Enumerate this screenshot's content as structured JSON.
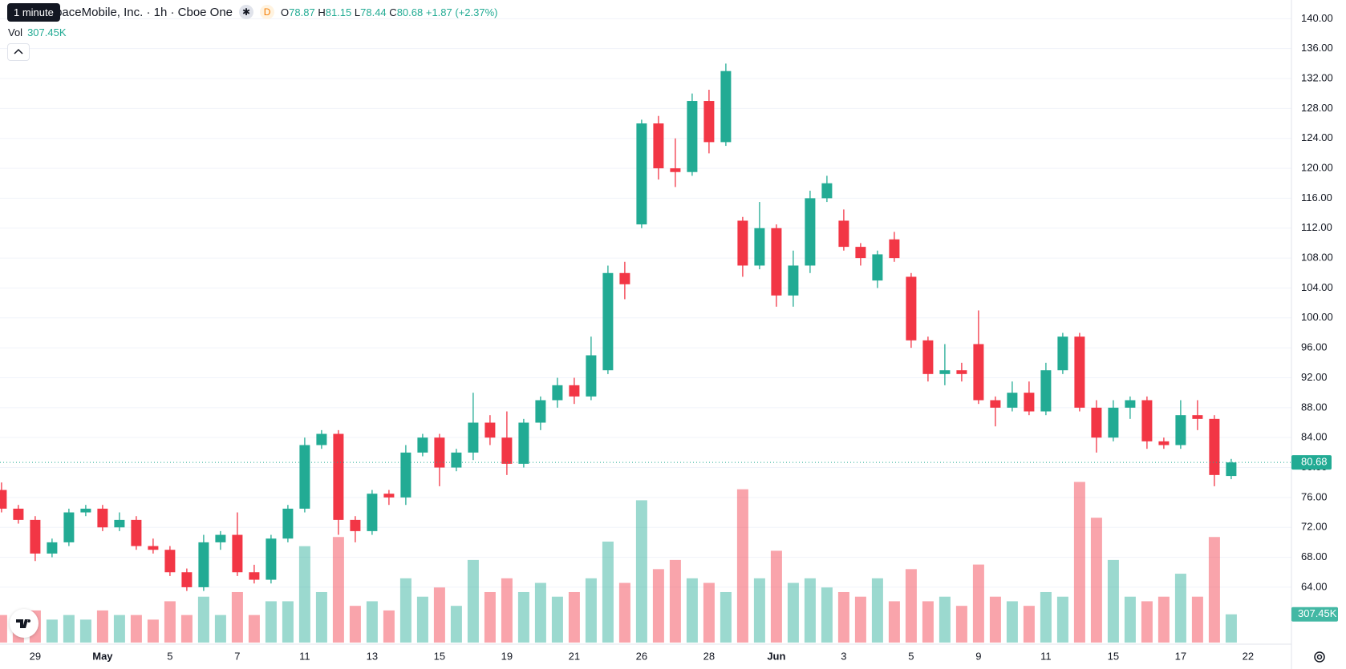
{
  "chart_data": {
    "type": "candlestick",
    "tooltip": "1 minute",
    "title": "AST SpaceMobile, Inc. · 1h · Cboe One",
    "badge": "D",
    "ohlc_keys": [
      "O",
      "H",
      "L",
      "C"
    ],
    "change": "+1.87 (+2.37%)",
    "volume_name": "Vol",
    "volume_label": "307.45K",
    "up_color": "#22ab94",
    "down_color": "#f23645",
    "categories": [
      null,
      null,
      "29",
      null,
      null,
      null,
      "May",
      null,
      null,
      null,
      "5",
      null,
      null,
      null,
      "7",
      null,
      null,
      null,
      "11",
      null,
      null,
      null,
      "13",
      null,
      null,
      null,
      "15",
      null,
      null,
      null,
      "19",
      null,
      null,
      null,
      "21",
      null,
      null,
      null,
      "26",
      null,
      null,
      null,
      "28",
      null,
      null,
      null,
      "Jun",
      null,
      null,
      null,
      "3",
      null,
      null,
      null,
      "5",
      null,
      null,
      null,
      "9",
      null,
      null,
      null,
      "11",
      null,
      null,
      null,
      "15",
      null,
      null,
      null,
      "17",
      null,
      null,
      null,
      "22"
    ],
    "open": [
      77,
      74.5,
      73,
      68.5,
      70,
      74,
      74.5,
      72,
      73,
      69.5,
      69,
      66,
      64,
      70,
      71,
      66,
      65,
      70.5,
      74.5,
      83,
      84.5,
      73,
      71.5,
      76.5,
      76,
      82,
      84,
      80,
      82,
      86,
      84,
      80.5,
      86,
      89,
      91,
      89.5,
      93,
      106,
      112.5,
      126,
      120,
      119.5,
      129,
      123.5,
      113,
      107,
      112,
      103,
      107,
      116,
      113,
      109.5,
      105,
      110.5,
      105.5,
      97,
      92.5,
      93,
      96.5,
      89,
      88,
      90,
      87.5,
      93,
      97.5,
      88,
      84,
      88,
      89,
      83.5,
      83,
      87,
      86.5,
      78.87,
      null
    ],
    "high": [
      78,
      75,
      73.5,
      70.5,
      74.5,
      75,
      75,
      74,
      73.5,
      70.5,
      69.5,
      66.5,
      71,
      71.5,
      74,
      67,
      71,
      75,
      84,
      85,
      85,
      73.5,
      77,
      77,
      83,
      84.5,
      84.5,
      82.5,
      90,
      87,
      87.5,
      86.5,
      89.5,
      92,
      92,
      97.5,
      107,
      107.5,
      126.5,
      127,
      124,
      130,
      130.5,
      134,
      113.5,
      115.5,
      112.5,
      109,
      117,
      119,
      114.5,
      110,
      109,
      111.5,
      106,
      97.5,
      96.5,
      94,
      101,
      89.5,
      91.5,
      91.5,
      94,
      98,
      98,
      89,
      89,
      89.5,
      89.5,
      84,
      89,
      89,
      87,
      81.15,
      null
    ],
    "low": [
      74,
      72.5,
      67.5,
      68,
      69.5,
      73.5,
      71.5,
      71.5,
      69,
      68.5,
      65.5,
      63.5,
      63.5,
      69,
      65.5,
      64.5,
      64.5,
      70,
      74,
      82.5,
      71,
      70,
      71,
      75,
      75,
      81.5,
      77.5,
      79.5,
      81,
      83,
      79,
      80,
      85,
      88,
      88.5,
      89,
      92.5,
      102.5,
      112,
      118.5,
      117.5,
      119,
      122,
      123,
      105.5,
      106.5,
      101.5,
      101.5,
      106,
      115.5,
      109,
      107,
      104,
      107.5,
      96,
      91.5,
      91,
      91.5,
      88.5,
      85.5,
      87.5,
      87,
      87,
      92.5,
      87.5,
      82,
      83.5,
      86.5,
      82.5,
      82.5,
      82.5,
      85,
      77.5,
      78.44,
      null
    ],
    "close": [
      74.5,
      73,
      68.5,
      70,
      74,
      74.5,
      72,
      73,
      69.5,
      69,
      66,
      64,
      70,
      71,
      66,
      65,
      70.5,
      74.5,
      83,
      84.5,
      73,
      71.5,
      76.5,
      76,
      82,
      84,
      80,
      82,
      86,
      84,
      80.5,
      86,
      89,
      91,
      89.5,
      95,
      106,
      104.5,
      126,
      120,
      119.5,
      129,
      123.5,
      133,
      107,
      112,
      103,
      107,
      116,
      118,
      109.5,
      108,
      108.5,
      108,
      97,
      92.5,
      93,
      92.5,
      89,
      88,
      90,
      87.5,
      93,
      97.5,
      88,
      84,
      88,
      89,
      83.5,
      83,
      87,
      86.5,
      79,
      80.68,
      null
    ],
    "volume": [
      300000,
      250000,
      350000,
      250000,
      300000,
      250000,
      350000,
      300000,
      300000,
      250000,
      450000,
      300000,
      500000,
      300000,
      550000,
      300000,
      450000,
      450000,
      1050000,
      550000,
      1150000,
      400000,
      450000,
      350000,
      700000,
      500000,
      600000,
      400000,
      900000,
      550000,
      700000,
      550000,
      650000,
      500000,
      550000,
      700000,
      1100000,
      650000,
      1550000,
      800000,
      900000,
      700000,
      650000,
      550000,
      1670000,
      700000,
      1000000,
      650000,
      700000,
      600000,
      550000,
      500000,
      700000,
      450000,
      800000,
      450000,
      500000,
      400000,
      850000,
      500000,
      450000,
      400000,
      550000,
      500000,
      1750000,
      1360000,
      900000,
      500000,
      450000,
      500000,
      750000,
      500000,
      1150000,
      307450,
      null
    ],
    "ylim": [
      56.6,
      142.5
    ],
    "yticks": [
      {
        "value": 64,
        "label": "64.00"
      },
      {
        "value": 68,
        "label": "68.00"
      },
      {
        "value": 72,
        "label": "72.00"
      },
      {
        "value": 76,
        "label": "76.00"
      },
      {
        "value": 80,
        "label": "80.00"
      },
      {
        "value": 84,
        "label": "84.00"
      },
      {
        "value": 88,
        "label": "88.00"
      },
      {
        "value": 92,
        "label": "92.00"
      },
      {
        "value": 96,
        "label": "96.00"
      },
      {
        "value": 100,
        "label": "100.00"
      },
      {
        "value": 104,
        "label": "104.00"
      },
      {
        "value": 108,
        "label": "108.00"
      },
      {
        "value": 112,
        "label": "112.00"
      },
      {
        "value": 116,
        "label": "116.00"
      },
      {
        "value": 120,
        "label": "120.00"
      },
      {
        "value": 124,
        "label": "124.00"
      },
      {
        "value": 128,
        "label": "128.00"
      },
      {
        "value": 132,
        "label": "132.00"
      },
      {
        "value": 136,
        "label": "136.00"
      },
      {
        "value": 140,
        "label": "140.00"
      }
    ],
    "volume_ylim": [
      0,
      7000000
    ],
    "grid": true
  }
}
